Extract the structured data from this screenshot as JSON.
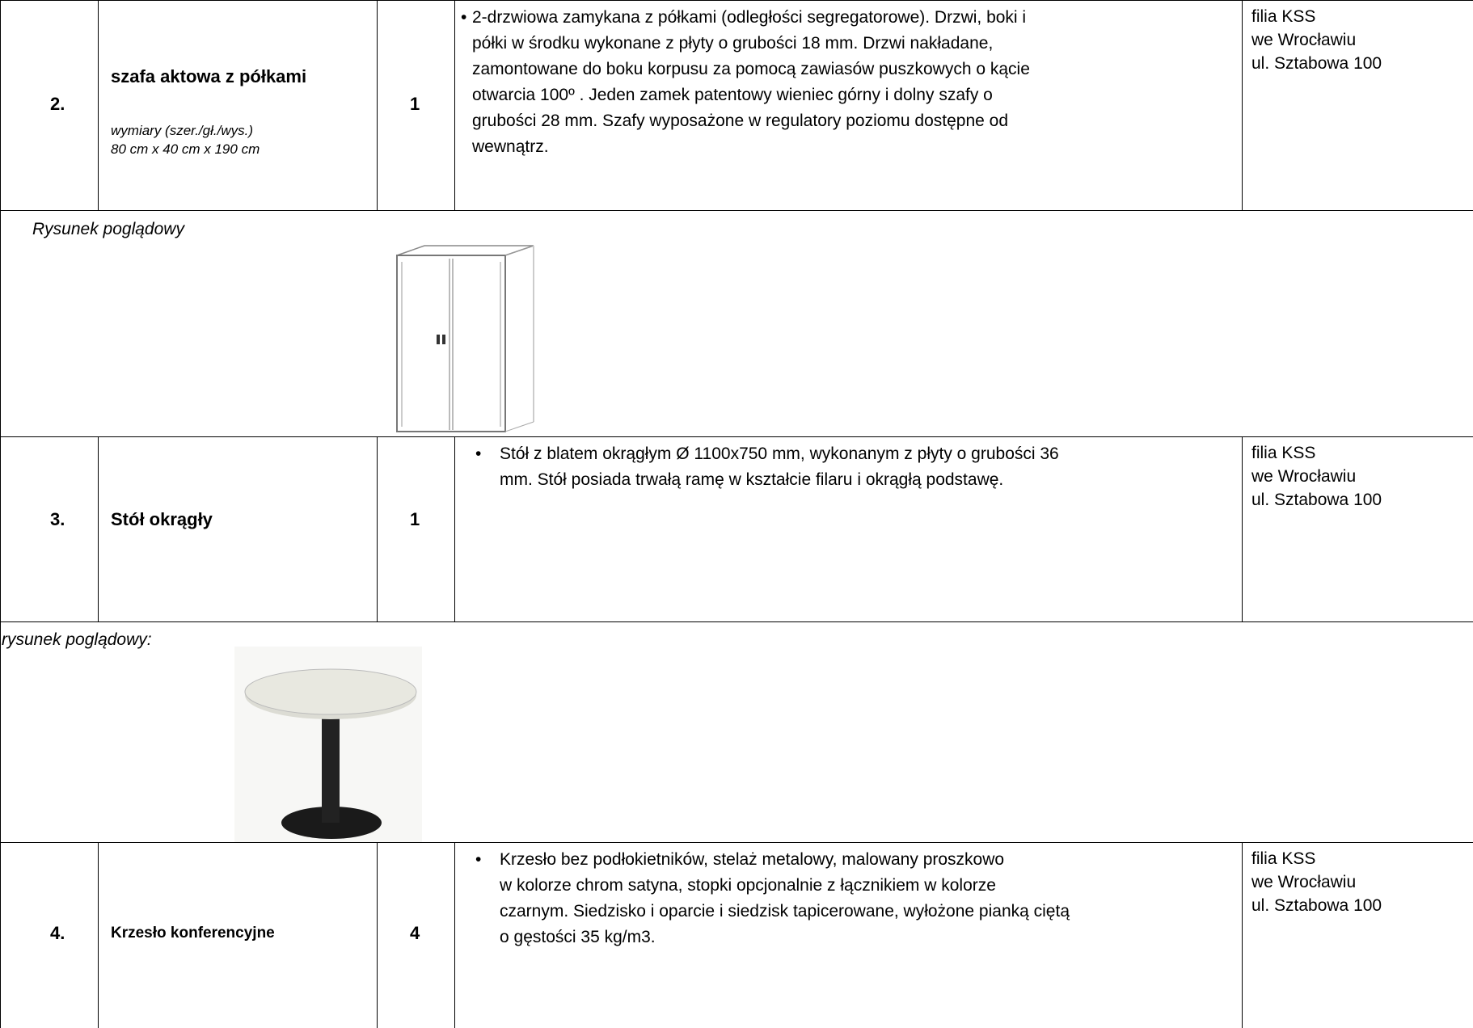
{
  "items": [
    {
      "number": "2.",
      "name": "szafa aktowa z półkami",
      "dimensions": [
        "wymiary (szer./gł./wys.)",
        "80 cm x 40 cm x 190 cm"
      ],
      "quantity": "1",
      "description": [
        "2-drzwiowa zamykana z półkami (odległości segregatorowe). Drzwi, boki i",
        "półki w środku wykonane z płyty o grubości 18 mm. Drzwi nakładane,",
        "zamontowane do boku korpusu za pomocą zawiasów puszkowych o kącie",
        "otwarcia 100º . Jeden zamek patentowy wieniec górny i dolny szafy o",
        "grubości 28 mm. Szafy wyposażone w regulatory poziomu dostępne od",
        "wewnątrz."
      ],
      "location": [
        "filia KSS",
        "we Wrocławiu",
        "ul. Sztabowa 100"
      ]
    },
    {
      "number": "3.",
      "name": "Stół okrągły",
      "quantity": "1",
      "description": [
        "Stół z blatem okrągłym Ø 1100x750 mm, wykonanym z płyty o grubości 36",
        "mm. Stół posiada trwałą ramę w kształcie filaru i okrągłą podstawę."
      ],
      "location": [
        "filia KSS",
        "we Wrocławiu",
        "ul. Sztabowa 100"
      ]
    },
    {
      "number": "4.",
      "name": "Krzesło konferencyjne",
      "quantity": "4",
      "description": [
        "Krzesło bez podłokietników, stelaż metalowy, malowany proszkowo",
        " w kolorze chrom satyna, stopki opcjonalnie z łącznikiem w kolorze",
        "czarnym. Siedzisko i oparcie i siedzisk tapicerowane, wyłożone pianką ciętą",
        "o gęstości 35 kg/m3."
      ],
      "location": [
        "filia KSS",
        "we Wrocławiu",
        "ul. Sztabowa 100"
      ]
    }
  ],
  "drawings": [
    {
      "caption": "Rysunek poglądowy"
    },
    {
      "caption": "rysunek poglądowy:"
    }
  ]
}
